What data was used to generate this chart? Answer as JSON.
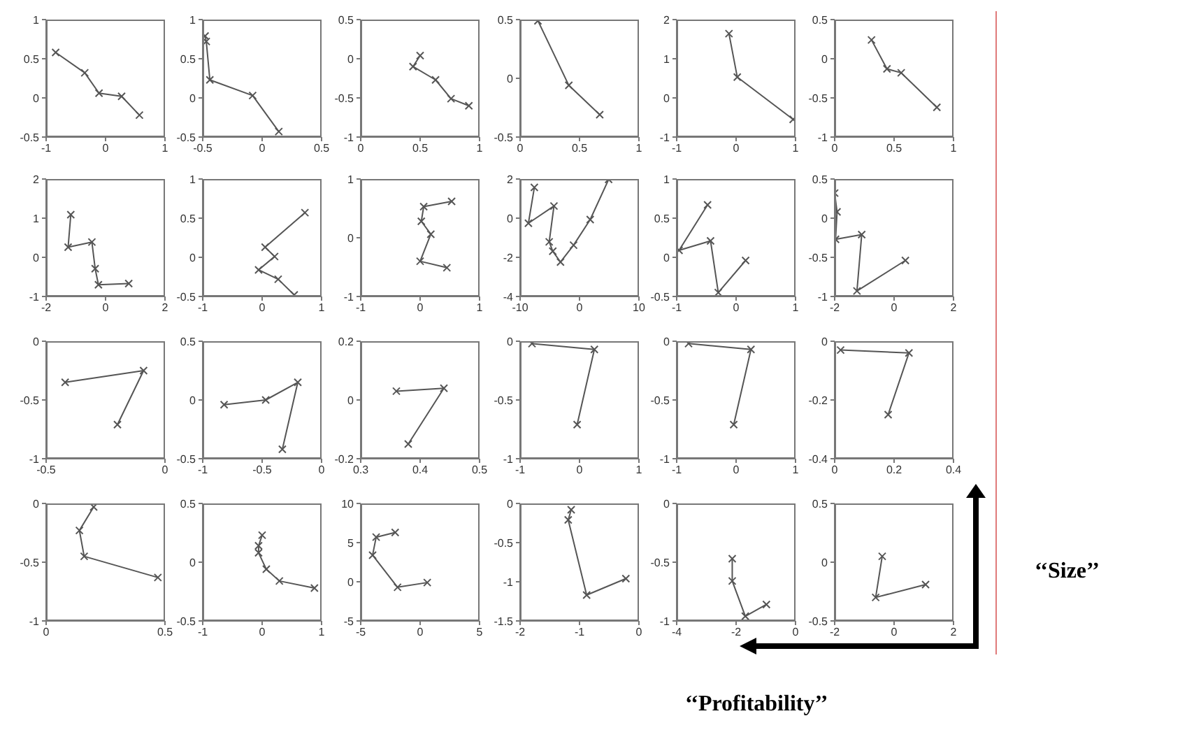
{
  "chart_data": [
    {
      "type": "line",
      "marker": "cross",
      "xlim": [
        -1,
        1
      ],
      "xticks": [
        -1,
        0,
        1
      ],
      "ylim": [
        -0.5,
        1
      ],
      "yticks": [
        -0.5,
        0,
        0.5,
        1
      ],
      "series": [
        {
          "color": "#555555",
          "x": [
            -0.84,
            -0.35,
            -0.11,
            0.27,
            0.57
          ],
          "values": [
            0.58,
            0.32,
            0.06,
            0.02,
            -0.22
          ]
        }
      ]
    },
    {
      "type": "line",
      "marker": "cross",
      "xlim": [
        -0.5,
        0.5
      ],
      "xticks": [
        -0.5,
        0,
        0.5
      ],
      "ylim": [
        -0.5,
        1
      ],
      "yticks": [
        -0.5,
        0,
        0.5,
        1
      ],
      "series": [
        {
          "color": "#555555",
          "x": [
            -0.48,
            -0.47,
            -0.44,
            -0.08,
            0.14
          ],
          "values": [
            0.79,
            0.72,
            0.23,
            0.03,
            -0.43
          ]
        }
      ]
    },
    {
      "type": "line",
      "marker": "cross",
      "xlim": [
        0,
        1
      ],
      "xticks": [
        0,
        0.5,
        1
      ],
      "ylim": [
        -1,
        0.5
      ],
      "yticks": [
        -1,
        -0.5,
        0,
        0.5
      ],
      "series": [
        {
          "color": "#555555",
          "x": [
            0.5,
            0.44,
            0.63,
            0.76,
            0.91
          ],
          "values": [
            0.04,
            -0.1,
            -0.27,
            -0.51,
            -0.6
          ]
        }
      ]
    },
    {
      "type": "line",
      "marker": "cross",
      "xlim": [
        0,
        1
      ],
      "xticks": [
        0,
        0.5,
        1
      ],
      "ylim": [
        -0.5,
        0.5
      ],
      "yticks": [
        -0.5,
        0,
        0.5
      ],
      "series": [
        {
          "color": "#555555",
          "x": [
            0.15,
            0.41,
            0.67
          ],
          "values": [
            0.49,
            -0.06,
            -0.31
          ]
        }
      ]
    },
    {
      "type": "line",
      "marker": "cross",
      "xlim": [
        -1,
        1
      ],
      "xticks": [
        -1,
        0,
        1
      ],
      "ylim": [
        -1,
        2
      ],
      "yticks": [
        -1,
        0,
        1,
        2
      ],
      "series": [
        {
          "color": "#555555",
          "x": [
            -0.12,
            0.02,
            0.96
          ],
          "values": [
            1.64,
            0.53,
            -0.55
          ]
        }
      ]
    },
    {
      "type": "line",
      "marker": "cross",
      "xlim": [
        0,
        1
      ],
      "xticks": [
        0,
        0.5,
        1
      ],
      "ylim": [
        -1,
        0.5
      ],
      "yticks": [
        -1,
        -0.5,
        0,
        0.5
      ],
      "series": [
        {
          "color": "#555555",
          "x": [
            0.31,
            0.44,
            0.56,
            0.86
          ],
          "values": [
            0.24,
            -0.13,
            -0.18,
            -0.62
          ]
        }
      ]
    },
    {
      "type": "line",
      "marker": "cross",
      "xlim": [
        -2,
        2
      ],
      "xticks": [
        -2,
        0,
        2
      ],
      "ylim": [
        -1,
        2
      ],
      "yticks": [
        -1,
        0,
        1,
        2
      ],
      "series": [
        {
          "color": "#555555",
          "x": [
            -1.17,
            -1.26,
            -0.46,
            -0.35,
            -0.24,
            0.78
          ],
          "values": [
            1.09,
            0.26,
            0.39,
            -0.29,
            -0.7,
            -0.67
          ]
        }
      ]
    },
    {
      "type": "line",
      "marker": "cross",
      "xlim": [
        -1,
        1
      ],
      "xticks": [
        -1,
        0,
        1
      ],
      "ylim": [
        -0.5,
        1
      ],
      "yticks": [
        -0.5,
        0,
        0.5,
        1
      ],
      "series": [
        {
          "color": "#555555",
          "x": [
            0.72,
            0.05,
            0.21,
            -0.06,
            0.27,
            0.54
          ],
          "values": [
            0.57,
            0.13,
            0.01,
            -0.16,
            -0.28,
            -0.48
          ]
        }
      ]
    },
    {
      "type": "line",
      "marker": "cross",
      "xlim": [
        -1,
        1
      ],
      "xticks": [
        -1,
        0,
        1
      ],
      "ylim": [
        -1,
        1
      ],
      "yticks": [
        -1,
        0,
        1
      ],
      "series": [
        {
          "color": "#555555",
          "x": [
            0.53,
            0.06,
            0.02,
            0.18,
            0.0,
            0.45
          ],
          "values": [
            0.62,
            0.53,
            0.28,
            0.06,
            -0.4,
            -0.51
          ]
        }
      ]
    },
    {
      "type": "line",
      "marker": "cross",
      "xlim": [
        -10,
        10
      ],
      "xticks": [
        -10,
        0,
        10
      ],
      "ylim": [
        -4,
        2
      ],
      "yticks": [
        -4,
        -2,
        0,
        2
      ],
      "series": [
        {
          "color": "#555555",
          "x": [
            -7.6,
            -8.6,
            -4.3,
            -5.1,
            -4.5,
            -3.2,
            -1.0,
            1.8,
            4.9
          ],
          "values": [
            1.57,
            -0.26,
            0.62,
            -1.21,
            -1.69,
            -2.24,
            -1.38,
            -0.07,
            1.98
          ]
        }
      ]
    },
    {
      "type": "line",
      "marker": "cross",
      "xlim": [
        -1,
        1
      ],
      "xticks": [
        -1,
        0,
        1
      ],
      "ylim": [
        -0.5,
        1
      ],
      "yticks": [
        -0.5,
        0,
        0.5,
        1
      ],
      "series": [
        {
          "color": "#555555",
          "x": [
            -0.48,
            -0.96,
            -0.43,
            -0.3,
            0.16
          ],
          "values": [
            0.67,
            0.09,
            0.21,
            -0.45,
            -0.04
          ]
        }
      ]
    },
    {
      "type": "line",
      "marker": "cross",
      "xlim": [
        -2,
        2
      ],
      "xticks": [
        -2,
        0,
        2
      ],
      "ylim": [
        -1,
        0.5
      ],
      "yticks": [
        -1,
        -0.5,
        0,
        0.5
      ],
      "series": [
        {
          "color": "#555555",
          "x": [
            -2.0,
            -1.92,
            -1.97,
            -1.09,
            -1.25,
            0.38
          ],
          "values": [
            0.32,
            0.08,
            -0.27,
            -0.21,
            -0.93,
            -0.54
          ]
        }
      ]
    },
    {
      "type": "line",
      "marker": "cross",
      "xlim": [
        -0.5,
        0
      ],
      "xticks": [
        -0.5,
        0
      ],
      "ylim": [
        -1,
        0
      ],
      "yticks": [
        -1,
        -0.5,
        0
      ],
      "series": [
        {
          "color": "#555555",
          "x": [
            -0.42,
            -0.09,
            -0.2
          ],
          "values": [
            -0.35,
            -0.25,
            -0.71
          ]
        }
      ]
    },
    {
      "type": "line",
      "marker": "cross",
      "xlim": [
        -1,
        0
      ],
      "xticks": [
        -1,
        -0.5,
        0
      ],
      "ylim": [
        -0.5,
        0.5
      ],
      "yticks": [
        -0.5,
        0,
        0.5
      ],
      "series": [
        {
          "color": "#555555",
          "x": [
            -0.82,
            -0.47,
            -0.2,
            -0.33
          ],
          "values": [
            -0.04,
            0.0,
            0.15,
            -0.42
          ]
        }
      ]
    },
    {
      "type": "line",
      "marker": "cross",
      "xlim": [
        0.3,
        0.5
      ],
      "xticks": [
        0.3,
        0.4,
        0.5
      ],
      "ylim": [
        -0.2,
        0.2
      ],
      "yticks": [
        -0.2,
        0,
        0.2
      ],
      "series": [
        {
          "color": "#555555",
          "x": [
            0.36,
            0.44,
            0.38
          ],
          "values": [
            0.03,
            0.04,
            -0.15
          ]
        }
      ]
    },
    {
      "type": "line",
      "marker": "cross",
      "xlim": [
        -1,
        1
      ],
      "xticks": [
        -1,
        0,
        1
      ],
      "ylim": [
        -1,
        0
      ],
      "yticks": [
        -1,
        -0.5,
        0
      ],
      "series": [
        {
          "color": "#555555",
          "x": [
            -0.8,
            0.25,
            -0.04
          ],
          "values": [
            -0.02,
            -0.07,
            -0.71
          ]
        }
      ]
    },
    {
      "type": "line",
      "marker": "cross",
      "xlim": [
        -1,
        1
      ],
      "xticks": [
        -1,
        0,
        1
      ],
      "ylim": [
        -1,
        0
      ],
      "yticks": [
        -1,
        -0.5,
        0
      ],
      "series": [
        {
          "color": "#555555",
          "x": [
            -0.8,
            0.25,
            -0.04
          ],
          "values": [
            -0.02,
            -0.07,
            -0.71
          ]
        }
      ]
    },
    {
      "type": "line",
      "marker": "cross",
      "xlim": [
        0,
        0.4
      ],
      "xticks": [
        0,
        0.2,
        0.4
      ],
      "ylim": [
        -0.4,
        0
      ],
      "yticks": [
        -0.4,
        -0.2,
        0
      ],
      "series": [
        {
          "color": "#555555",
          "x": [
            0.02,
            0.25,
            0.18
          ],
          "values": [
            -0.03,
            -0.04,
            -0.25
          ]
        }
      ]
    },
    {
      "type": "line",
      "marker": "cross",
      "xlim": [
        0,
        0.5
      ],
      "xticks": [
        0,
        0.5
      ],
      "ylim": [
        -1,
        0
      ],
      "yticks": [
        -1,
        -0.5,
        0
      ],
      "series": [
        {
          "color": "#555555",
          "x": [
            0.2,
            0.14,
            0.16,
            0.47
          ],
          "values": [
            -0.03,
            -0.23,
            -0.45,
            -0.63
          ]
        }
      ]
    },
    {
      "type": "line",
      "marker": "cross",
      "xlim": [
        -1,
        1
      ],
      "xticks": [
        -1,
        0,
        1
      ],
      "ylim": [
        -0.5,
        0.5
      ],
      "yticks": [
        -0.5,
        0,
        0.5
      ],
      "series": [
        {
          "color": "#555555",
          "x": [
            0.0,
            -0.06,
            -0.06,
            0.07,
            0.29,
            0.88
          ],
          "values": [
            0.23,
            0.14,
            0.08,
            -0.06,
            -0.16,
            -0.22
          ]
        }
      ]
    },
    {
      "type": "line",
      "marker": "cross",
      "xlim": [
        -5,
        5
      ],
      "xticks": [
        -5,
        0,
        5
      ],
      "ylim": [
        -5,
        10
      ],
      "yticks": [
        -5,
        0,
        5,
        10
      ],
      "series": [
        {
          "color": "#555555",
          "x": [
            -2.1,
            -3.7,
            -4.0,
            -1.9,
            0.6
          ],
          "values": [
            6.3,
            5.7,
            3.4,
            -0.7,
            -0.1
          ]
        }
      ]
    },
    {
      "type": "line",
      "marker": "cross",
      "xlim": [
        -2,
        0
      ],
      "xticks": [
        -2,
        -1,
        0
      ],
      "ylim": [
        -1.5,
        0
      ],
      "yticks": [
        -1.5,
        -1,
        -0.5,
        0
      ],
      "series": [
        {
          "color": "#555555",
          "x": [
            -1.14,
            -1.19,
            -0.88,
            -0.22
          ],
          "values": [
            -0.08,
            -0.21,
            -1.17,
            -0.96
          ]
        }
      ]
    },
    {
      "type": "line",
      "marker": "cross",
      "xlim": [
        -4,
        0
      ],
      "xticks": [
        -4,
        -2,
        0
      ],
      "ylim": [
        -1,
        0
      ],
      "yticks": [
        -1,
        -0.5,
        0
      ],
      "series": [
        {
          "color": "#555555",
          "x": [
            -2.13,
            -2.13,
            -1.69,
            -0.98
          ],
          "values": [
            -0.47,
            -0.66,
            -0.96,
            -0.86
          ]
        }
      ]
    },
    {
      "type": "line",
      "marker": "cross",
      "xlim": [
        -2,
        2
      ],
      "xticks": [
        -2,
        0,
        2
      ],
      "ylim": [
        -0.5,
        0.5
      ],
      "yticks": [
        -0.5,
        0,
        0.5
      ],
      "series": [
        {
          "color": "#555555",
          "x": [
            -0.4,
            -0.62,
            1.06
          ],
          "values": [
            0.05,
            -0.3,
            -0.19
          ]
        }
      ]
    },
    {
      "type": "other",
      "annotations": [
        "‘‘Size’’",
        "‘‘Profitability’’"
      ]
    }
  ]
}
